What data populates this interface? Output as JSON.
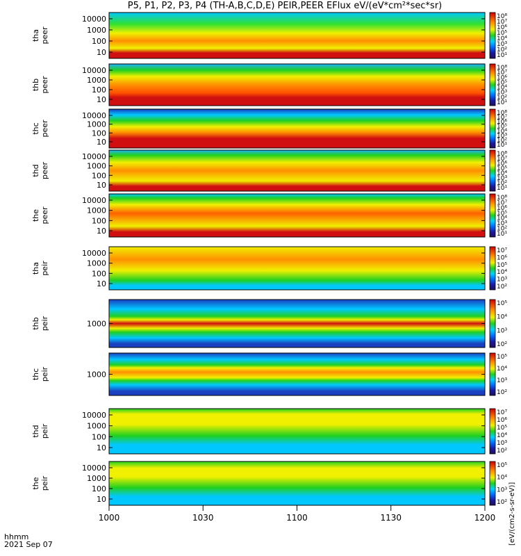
{
  "title": "P5, P1, P2, P3, P4 (TH-A,B,C,D,E) PEIR,PEER EFlux eV/(eV*cm²*sec*sr)",
  "corner_labels": [
    "hhmm",
    "2021 Sep 07"
  ],
  "colorbar_units": "[eV/(cm2-s-sr-eV)]",
  "colors": {
    "background": "#ffffff",
    "low": "#1a1aa0",
    "mid": "#00c8ff",
    "green": "#20d020",
    "yellow": "#f0f000",
    "orange": "#ff9000",
    "high": "#e01010"
  },
  "chart_data": {
    "type": "heatmap",
    "x_ticks": [
      "1000",
      "1030",
      "1100",
      "1130",
      "1200"
    ],
    "panels": [
      {
        "id": "tha_peer",
        "label_line1": "tha",
        "label_line2": "peer",
        "y_ticks": [
          "10000",
          "1000",
          "100",
          "10"
        ],
        "cbar_ticks": [
          "10⁸",
          "10⁷",
          "10⁶",
          "10⁵",
          "10⁴",
          "10³",
          "10²",
          "10¹"
        ]
      },
      {
        "id": "thb_peer",
        "label_line1": "thb",
        "label_line2": "peer",
        "y_ticks": [
          "10000",
          "1000",
          "100",
          "10"
        ],
        "cbar_ticks": [
          "10⁸",
          "10⁷",
          "10⁶",
          "10⁵",
          "10⁴",
          "10³",
          "10²",
          "10¹"
        ]
      },
      {
        "id": "thc_peer",
        "label_line1": "thc",
        "label_line2": "peer",
        "y_ticks": [
          "10000",
          "1000",
          "100",
          "10"
        ],
        "cbar_ticks": [
          "10⁸",
          "10⁷",
          "10⁶",
          "10⁵",
          "10⁴",
          "10³",
          "10²",
          "10¹"
        ]
      },
      {
        "id": "thd_peer",
        "label_line1": "thd",
        "label_line2": "peer",
        "y_ticks": [
          "10000",
          "1000",
          "100",
          "10"
        ],
        "cbar_ticks": [
          "10⁸",
          "10⁷",
          "10⁶",
          "10⁵",
          "10⁴",
          "10³",
          "10²",
          "10¹"
        ]
      },
      {
        "id": "the_peer",
        "label_line1": "the",
        "label_line2": "peer",
        "y_ticks": [
          "10000",
          "1000",
          "100",
          "10"
        ],
        "cbar_ticks": [
          "10⁸",
          "10⁷",
          "10⁶",
          "10⁵",
          "10⁴",
          "10³",
          "10²",
          "10¹"
        ]
      },
      {
        "id": "tha_peir",
        "label_line1": "tha",
        "label_line2": "peir",
        "y_ticks": [
          "10000",
          "1000",
          "100",
          "10"
        ],
        "cbar_ticks": [
          "10⁷",
          "10⁶",
          "10⁵",
          "10⁴",
          "10³",
          "10²"
        ]
      },
      {
        "id": "thb_peir",
        "label_line1": "thb",
        "label_line2": "peir",
        "y_ticks": [
          "1000"
        ],
        "cbar_ticks": [
          "10⁵",
          "10⁴",
          "10³",
          "10²"
        ]
      },
      {
        "id": "thc_peir",
        "label_line1": "thc",
        "label_line2": "peir",
        "y_ticks": [
          "1000"
        ],
        "cbar_ticks": [
          "10⁵",
          "10⁴",
          "10³",
          "10²"
        ]
      },
      {
        "id": "thd_peir",
        "label_line1": "thd",
        "label_line2": "peir",
        "y_ticks": [
          "10000",
          "1000",
          "100",
          "10"
        ],
        "cbar_ticks": [
          "10⁷",
          "10⁶",
          "10⁵",
          "10⁴",
          "10³",
          "10²"
        ]
      },
      {
        "id": "the_peir",
        "label_line1": "the",
        "label_line2": "peir",
        "y_ticks": [
          "10000",
          "1000",
          "100",
          "10"
        ],
        "cbar_ticks": [
          "10⁵",
          "10⁴",
          "10³",
          "10²"
        ]
      }
    ]
  }
}
